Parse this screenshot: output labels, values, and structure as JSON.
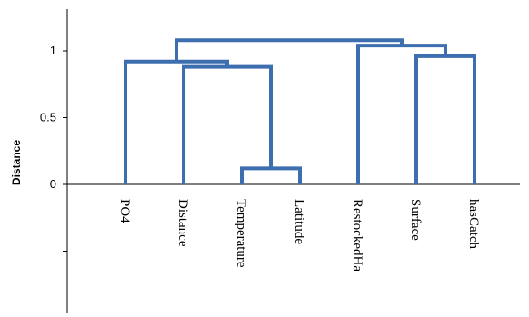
{
  "chart_data": {
    "type": "dendrogram",
    "ylabel": "Distance",
    "ylim": [
      -1,
      1.3
    ],
    "yticks": [
      {
        "value": 1,
        "label": "1"
      },
      {
        "value": 0.5,
        "label": "0.5"
      },
      {
        "value": 0,
        "label": "0"
      },
      {
        "value": -0.5,
        "label": ""
      }
    ],
    "leaves": [
      "PO4",
      "Distance",
      "Temperature",
      "Latitude",
      "RestockedHa",
      "Surface",
      "hasCatch"
    ],
    "merges": [
      {
        "id": "m1",
        "left": "Temperature",
        "right": "Latitude",
        "height": 0.12
      },
      {
        "id": "m2",
        "left": "Distance",
        "right": "m1",
        "height": 0.88
      },
      {
        "id": "m3",
        "left": "PO4",
        "right": "m2",
        "height": 0.92
      },
      {
        "id": "m4",
        "left": "Surface",
        "right": "hasCatch",
        "height": 0.96
      },
      {
        "id": "m5",
        "left": "RestockedHa",
        "right": "m4",
        "height": 1.04
      },
      {
        "id": "m6",
        "left": "m3",
        "right": "m5",
        "height": 1.08
      }
    ],
    "link_color": "#3d6fb0",
    "grid": false
  }
}
